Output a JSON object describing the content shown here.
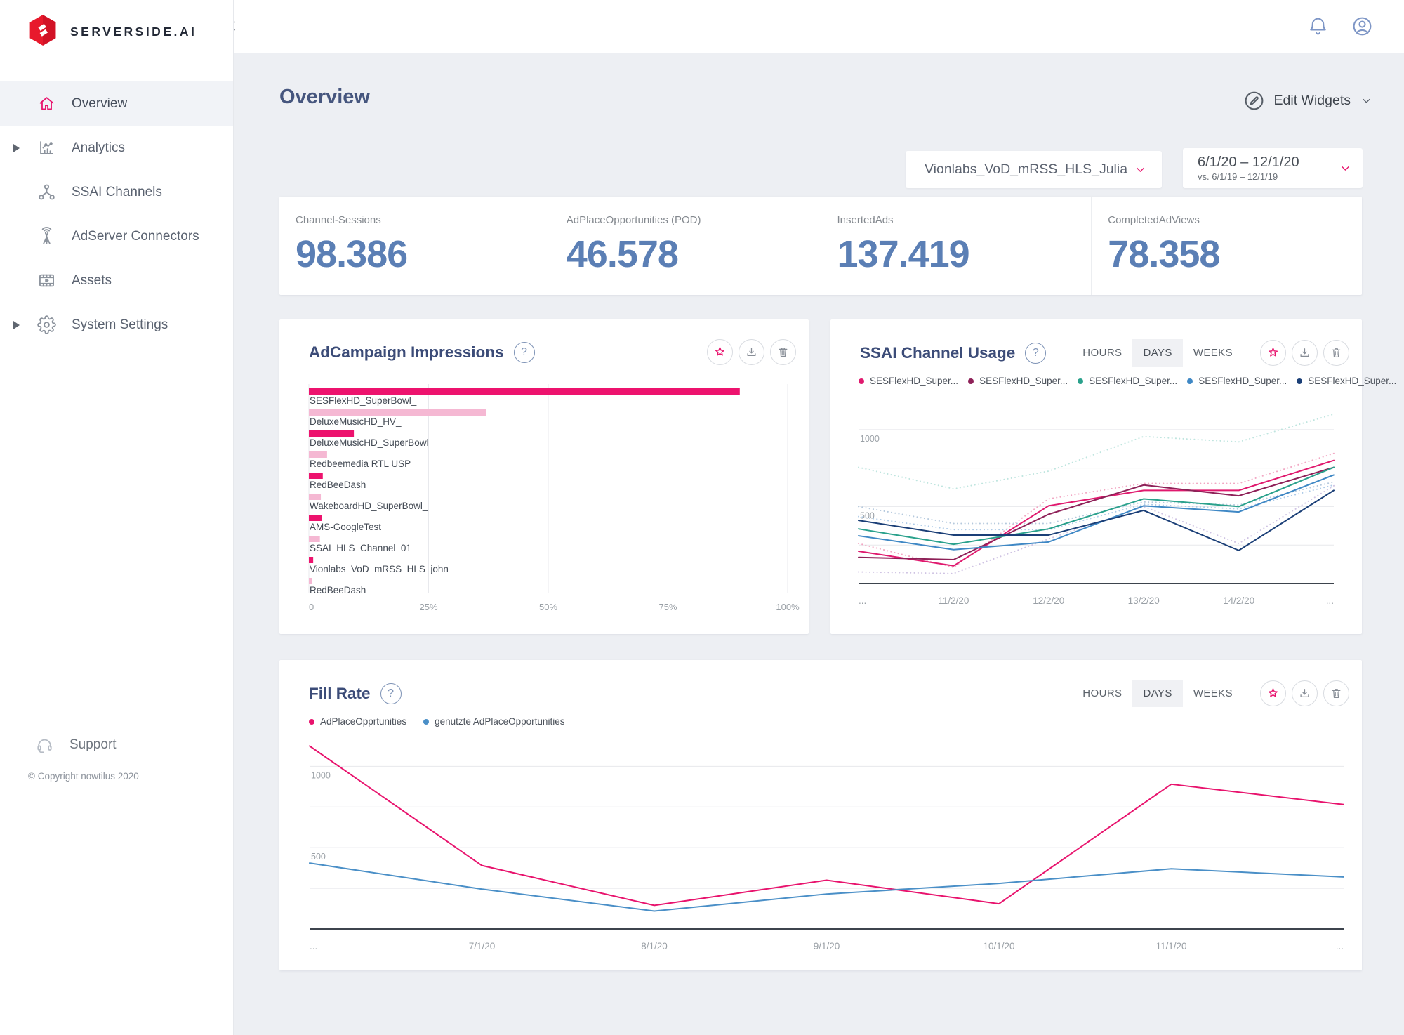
{
  "brand": {
    "name": "SERVERSIDE.AI",
    "logo_icon": "serverside-logo"
  },
  "topbar": {
    "collapse_icon": "chevron-left-icon",
    "actions": [
      {
        "name": "notifications",
        "icon": "bell-icon"
      },
      {
        "name": "account",
        "icon": "user-icon"
      }
    ]
  },
  "sidebar": {
    "items": [
      {
        "label": "Overview",
        "icon": "home-icon",
        "active": true,
        "expandable": false
      },
      {
        "label": "Analytics",
        "icon": "analytics-icon",
        "active": false,
        "expandable": true
      },
      {
        "label": "SSAI Channels",
        "icon": "network-icon",
        "active": false,
        "expandable": false
      },
      {
        "label": "AdServer Connectors",
        "icon": "antenna-icon",
        "active": false,
        "expandable": false
      },
      {
        "label": "Assets",
        "icon": "film-icon",
        "active": false,
        "expandable": false
      },
      {
        "label": "System Settings",
        "icon": "gear-icon",
        "active": false,
        "expandable": true
      }
    ],
    "support": {
      "label": "Support",
      "icon": "headset-icon"
    },
    "copyright": "© Copyright nowtilus 2020"
  },
  "page": {
    "title": "Overview",
    "edit_widgets": {
      "label": "Edit Widgets",
      "icon": "pencil-icon"
    }
  },
  "filters": {
    "channel_select": {
      "value": "Vionlabs_VoD_mRSS_HLS_Julia"
    },
    "date_range": {
      "primary": "6/1/20 – 12/1/20",
      "comparison": "vs. 6/1/19 – 12/1/19"
    }
  },
  "kpis": [
    {
      "label": "Channel-Sessions",
      "value": "98.386"
    },
    {
      "label": "AdPlaceOpportunities (POD)",
      "value": "46.578"
    },
    {
      "label": "InsertedAds",
      "value": "137.419"
    },
    {
      "label": "CompletedAdViews",
      "value": "78.358"
    }
  ],
  "icons": {
    "help_glyph": "?"
  },
  "widgets": {
    "ad_campaign": {
      "title": "AdCampaign Impressions",
      "actions": [
        "favorite",
        "download",
        "delete"
      ]
    },
    "ssai_usage": {
      "title": "SSAI Channel Usage",
      "tabs": {
        "options": [
          "HOURS",
          "DAYS",
          "WEEKS"
        ],
        "active": "DAYS"
      },
      "actions": [
        "favorite",
        "download",
        "delete"
      ],
      "legend": [
        {
          "label": "SESFlexHD_Super...",
          "color": "#e0196e"
        },
        {
          "label": "SESFlexHD_Super...",
          "color": "#8e2158"
        },
        {
          "label": "SESFlexHD_Super...",
          "color": "#2aa18c"
        },
        {
          "label": "SESFlexHD_Super...",
          "color": "#3f88c5"
        },
        {
          "label": "SESFlexHD_Super...",
          "color": "#1b3f77"
        }
      ]
    },
    "fill_rate": {
      "title": "Fill Rate",
      "tabs": {
        "options": [
          "HOURS",
          "DAYS",
          "WEEKS"
        ],
        "active": "DAYS"
      },
      "actions": [
        "favorite",
        "download",
        "delete"
      ],
      "legend": [
        {
          "label": "AdPlaceOpprtunities",
          "color": "#e8136d"
        },
        {
          "label": "genutzte AdPlaceOpportunities",
          "color": "#4a8fc7"
        }
      ]
    }
  },
  "colors": {
    "accent": "#e8136d",
    "kpi_value": "#5b7fb5",
    "bar_primary": "#ed136e",
    "bar_secondary": "#f5b8d3"
  },
  "chart_data": [
    {
      "id": "ad_campaign_impressions",
      "type": "bar",
      "orientation": "horizontal",
      "title": "AdCampaign Impressions",
      "categories": [
        "SESFlexHD_SuperBowl_",
        "DeluxeMusicHD_HV_",
        "DeluxeMusicHD_SuperBowl",
        "Redbeemedia RTL USP",
        "RedBeeDash",
        "WakeboardHD_SuperBowl_",
        "AMS-GoogleTest",
        "SSAI_HLS_Channel_01",
        "Vionlabs_VoD_mRSS_HLS_john",
        "RedBeeDash"
      ],
      "values": [
        90,
        37,
        9.4,
        3.8,
        2.9,
        2.5,
        2.7,
        2.3,
        0.9,
        0.6
      ],
      "bar_colors_alternate": [
        "#ed136e",
        "#f5b8d3"
      ],
      "x_ticks": [
        "0",
        "25%",
        "50%",
        "75%",
        "100%"
      ],
      "xlim": [
        0,
        100
      ],
      "grid": true
    },
    {
      "id": "ssai_channel_usage",
      "type": "line",
      "title": "SSAI Channel Usage",
      "x": [
        "...",
        "11/2/20",
        "12/2/20",
        "13/2/20",
        "14/2/20",
        "..."
      ],
      "ylim": [
        0,
        1200
      ],
      "grid_lines": [
        250,
        500,
        750,
        1000
      ],
      "y_ticks": [
        500,
        1000
      ],
      "legend_position": "top",
      "series": [
        {
          "name": "SESFlexHD_Super... (prev)",
          "color": "#f2a7c3",
          "style": "dotted",
          "values": [
            260,
            105,
            550,
            650,
            650,
            845
          ]
        },
        {
          "name": "SESFlexHD_Super... (prev)",
          "color": "#bfe5df",
          "style": "dotted",
          "values": [
            755,
            615,
            730,
            955,
            920,
            1100
          ]
        },
        {
          "name": "SESFlexHD_Super... (prev)",
          "color": "#aecbe8",
          "style": "dotted",
          "values": [
            435,
            350,
            350,
            515,
            485,
            640
          ]
        },
        {
          "name": "SESFlexHD_Super... (prev)",
          "color": "#cfc3e3",
          "style": "dotted",
          "values": [
            75,
            65,
            290,
            500,
            260,
            635
          ]
        },
        {
          "name": "SESFlexHD_Super... (prev)",
          "color": "#b5c9dd",
          "style": "dotted",
          "values": [
            500,
            390,
            390,
            530,
            510,
            660
          ]
        },
        {
          "name": "SESFlexHD_Super...",
          "color": "#e0196e",
          "style": "solid",
          "values": [
            210,
            115,
            505,
            605,
            605,
            800
          ]
        },
        {
          "name": "SESFlexHD_Super...",
          "color": "#8e2158",
          "style": "solid",
          "values": [
            170,
            155,
            450,
            640,
            570,
            755
          ]
        },
        {
          "name": "SESFlexHD_Super...",
          "color": "#2aa18c",
          "style": "solid",
          "values": [
            355,
            255,
            355,
            550,
            500,
            755
          ]
        },
        {
          "name": "SESFlexHD_Super...",
          "color": "#3f88c5",
          "style": "solid",
          "values": [
            310,
            220,
            270,
            505,
            465,
            705
          ]
        },
        {
          "name": "SESFlexHD_Super...",
          "color": "#1b3f77",
          "style": "solid",
          "values": [
            410,
            315,
            315,
            475,
            215,
            605
          ]
        }
      ]
    },
    {
      "id": "fill_rate",
      "type": "line",
      "title": "Fill Rate",
      "x": [
        "...",
        "7/1/20",
        "8/1/20",
        "9/1/20",
        "10/1/20",
        "11/1/20",
        "..."
      ],
      "ylim": [
        0,
        1200
      ],
      "grid_lines": [
        250,
        500,
        750,
        1000
      ],
      "y_ticks": [
        500,
        1000
      ],
      "legend_position": "top",
      "series": [
        {
          "name": "AdPlaceOpprtunities",
          "color": "#e8136d",
          "style": "solid",
          "values": [
            1125,
            390,
            145,
            300,
            155,
            890,
            765
          ]
        },
        {
          "name": "genutzte AdPlaceOpportunities",
          "color": "#4a8fc7",
          "style": "solid",
          "values": [
            405,
            245,
            110,
            215,
            280,
            370,
            320
          ]
        }
      ]
    }
  ]
}
